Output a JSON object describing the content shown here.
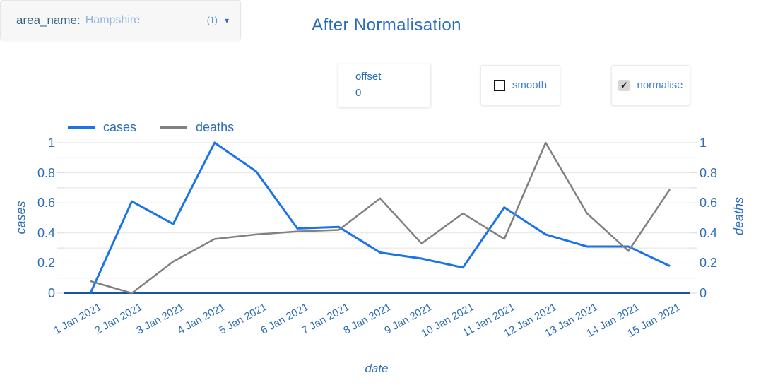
{
  "title": "After Normalisation",
  "controls": {
    "area_filter": {
      "label": "area_name",
      "separator": ":",
      "value": "Hampshire",
      "count": "(1)",
      "caret_glyph": "▾"
    },
    "offset": {
      "label": "offset",
      "value": "0"
    },
    "smooth": {
      "label": "smooth",
      "checked": false
    },
    "normalise": {
      "label": "normalise",
      "checked": true,
      "check_glyph": "✓"
    }
  },
  "chart_data": {
    "type": "line",
    "title": "After Normalisation",
    "x": [
      "1 Jan 2021",
      "2 Jan 2021",
      "3 Jan 2021",
      "4 Jan 2021",
      "5 Jan 2021",
      "6 Jan 2021",
      "7 Jan 2021",
      "8 Jan 2021",
      "9 Jan 2021",
      "10 Jan 2021",
      "11 Jan 2021",
      "12 Jan 2021",
      "13 Jan 2021",
      "14 Jan 2021",
      "15 Jan 2021"
    ],
    "series": [
      {
        "name": "cases",
        "axis": "left",
        "color": "#1a73e8",
        "values": [
          0,
          0.61,
          0.46,
          1,
          0.81,
          0.43,
          0.44,
          0.27,
          0.23,
          0.17,
          0.57,
          0.39,
          0.31,
          0.31,
          0.18
        ]
      },
      {
        "name": "deaths",
        "axis": "right",
        "color": "#808080",
        "values": [
          0.08,
          0,
          0.21,
          0.36,
          0.39,
          0.41,
          0.42,
          0.63,
          0.33,
          0.53,
          0.36,
          1,
          0.53,
          0.28,
          0.69
        ]
      }
    ],
    "xlabel": "date",
    "ylabel_left": "cases",
    "ylabel_right": "deaths",
    "ylim": [
      0,
      1
    ],
    "yticks": [
      0,
      0.2,
      0.4,
      0.6,
      0.8,
      1
    ],
    "minor_grid_step": 0.1,
    "grid": true,
    "legend_position": "top-left"
  },
  "colors": {
    "title": "#2a6cb9",
    "axis_text": "#2e6db8",
    "grid": "#e4e4e6",
    "tick": "#d9d9d9",
    "axis_line": "#1656a8",
    "control_label": "#3f7fd4"
  }
}
